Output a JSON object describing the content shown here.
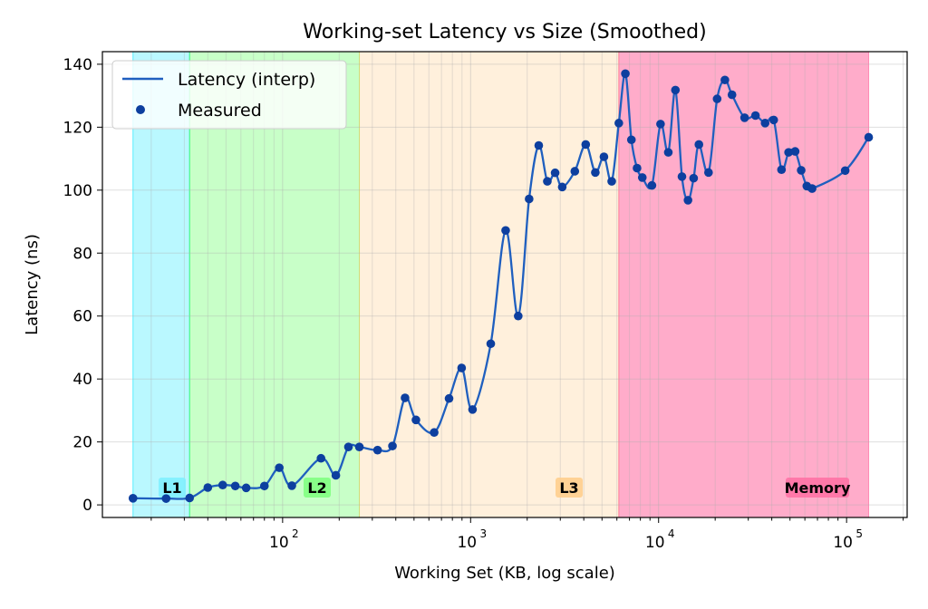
{
  "chart_data": {
    "type": "line",
    "title": "Working-set Latency vs Size (Smoothed)",
    "xlabel": "Working Set (KB, log scale)",
    "ylabel": "Latency (ns)",
    "x_scale": "log",
    "xlim": [
      11,
      210000
    ],
    "ylim": [
      -4,
      144
    ],
    "yticks": [
      0,
      20,
      40,
      60,
      80,
      100,
      120,
      140
    ],
    "xticks": [
      {
        "value": 100,
        "base": "10",
        "exp": "2"
      },
      {
        "value": 1000,
        "base": "10",
        "exp": "3"
      },
      {
        "value": 10000,
        "base": "10",
        "exp": "4"
      },
      {
        "value": 100000,
        "base": "10",
        "exp": "5"
      }
    ],
    "grid": true,
    "legend": {
      "position": "top-left",
      "entries": [
        {
          "label": "Latency (interp)",
          "kind": "line",
          "color": "#1f5fbf"
        },
        {
          "label": "Measured",
          "kind": "marker",
          "color": "#0d3f9f"
        }
      ]
    },
    "regions": [
      {
        "label": "L1",
        "start": 16,
        "end": 32,
        "color": "#00e5ff",
        "badge": "#7df0ff"
      },
      {
        "label": "L2",
        "start": 32,
        "end": 256,
        "color": "#33ff33",
        "badge": "#7dff7d"
      },
      {
        "label": "L3",
        "start": 256,
        "end": 6144,
        "color": "#ffc97f",
        "badge": "#ffcc88"
      },
      {
        "label": "Memory",
        "start": 6144,
        "end": 131072,
        "color": "#ff5a96",
        "badge": "#ff6fa3"
      }
    ],
    "region_label_y": 5.5,
    "series": [
      {
        "name": "Measured",
        "color": "#1f5fbf",
        "points": [
          [
            16,
            2.1
          ],
          [
            24,
            2.0
          ],
          [
            32,
            2.2
          ],
          [
            40,
            5.5
          ],
          [
            48,
            6.3
          ],
          [
            56,
            6.0
          ],
          [
            64,
            5.4
          ],
          [
            80,
            6.0
          ],
          [
            96,
            11.8
          ],
          [
            112,
            6.1
          ],
          [
            160,
            14.8
          ],
          [
            192,
            9.4
          ],
          [
            224,
            18.4
          ],
          [
            256,
            18.4
          ],
          [
            320,
            17.4
          ],
          [
            384,
            18.7
          ],
          [
            448,
            34.0
          ],
          [
            512,
            27.0
          ],
          [
            640,
            23.0
          ],
          [
            768,
            33.8
          ],
          [
            896,
            43.5
          ],
          [
            1024,
            30.3
          ],
          [
            1280,
            51.2
          ],
          [
            1536,
            87.2
          ],
          [
            1792,
            60.0
          ],
          [
            2048,
            97.2
          ],
          [
            2304,
            114.2
          ],
          [
            2560,
            102.8
          ],
          [
            2816,
            105.5
          ],
          [
            3072,
            101.0
          ],
          [
            3584,
            106.0
          ],
          [
            4096,
            114.5
          ],
          [
            4608,
            105.6
          ],
          [
            5120,
            110.6
          ],
          [
            5632,
            102.8
          ],
          [
            6144,
            121.3
          ],
          [
            6656,
            137.0
          ],
          [
            7168,
            116.0
          ],
          [
            7680,
            107.0
          ],
          [
            8192,
            104.0
          ],
          [
            9216,
            101.5
          ],
          [
            10240,
            121.0
          ],
          [
            11264,
            112.0
          ],
          [
            12288,
            131.8
          ],
          [
            13312,
            104.3
          ],
          [
            14336,
            96.8
          ],
          [
            15360,
            103.8
          ],
          [
            16384,
            114.5
          ],
          [
            18432,
            105.6
          ],
          [
            20480,
            129.0
          ],
          [
            22528,
            135.0
          ],
          [
            24576,
            130.3
          ],
          [
            28672,
            123.0
          ],
          [
            32768,
            123.7
          ],
          [
            36864,
            121.3
          ],
          [
            40960,
            122.3
          ],
          [
            45056,
            106.5
          ],
          [
            49152,
            112.0
          ],
          [
            53248,
            112.3
          ],
          [
            57344,
            106.3
          ],
          [
            61440,
            101.3
          ],
          [
            65536,
            100.5
          ],
          [
            98304,
            106.2
          ],
          [
            131072,
            116.8
          ]
        ]
      }
    ]
  }
}
